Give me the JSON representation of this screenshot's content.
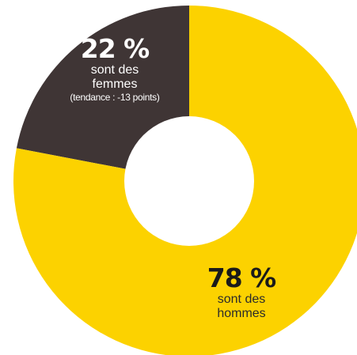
{
  "chart_data": {
    "type": "pie",
    "title": "",
    "categories": [
      "sont des femmes",
      "sont des hommes"
    ],
    "values": [
      22,
      78
    ],
    "colors": [
      "#3f3535",
      "#fcd200"
    ],
    "donut": true,
    "slices": [
      {
        "percent_label": "22 %",
        "value": 22,
        "line1": "sont des",
        "line2": "femmes",
        "note": "(tendance : -13 points)",
        "color": "#3f3535"
      },
      {
        "percent_label": "78 %",
        "value": 78,
        "line1": "sont des",
        "line2": "hommes",
        "color": "#fcd200"
      }
    ]
  }
}
